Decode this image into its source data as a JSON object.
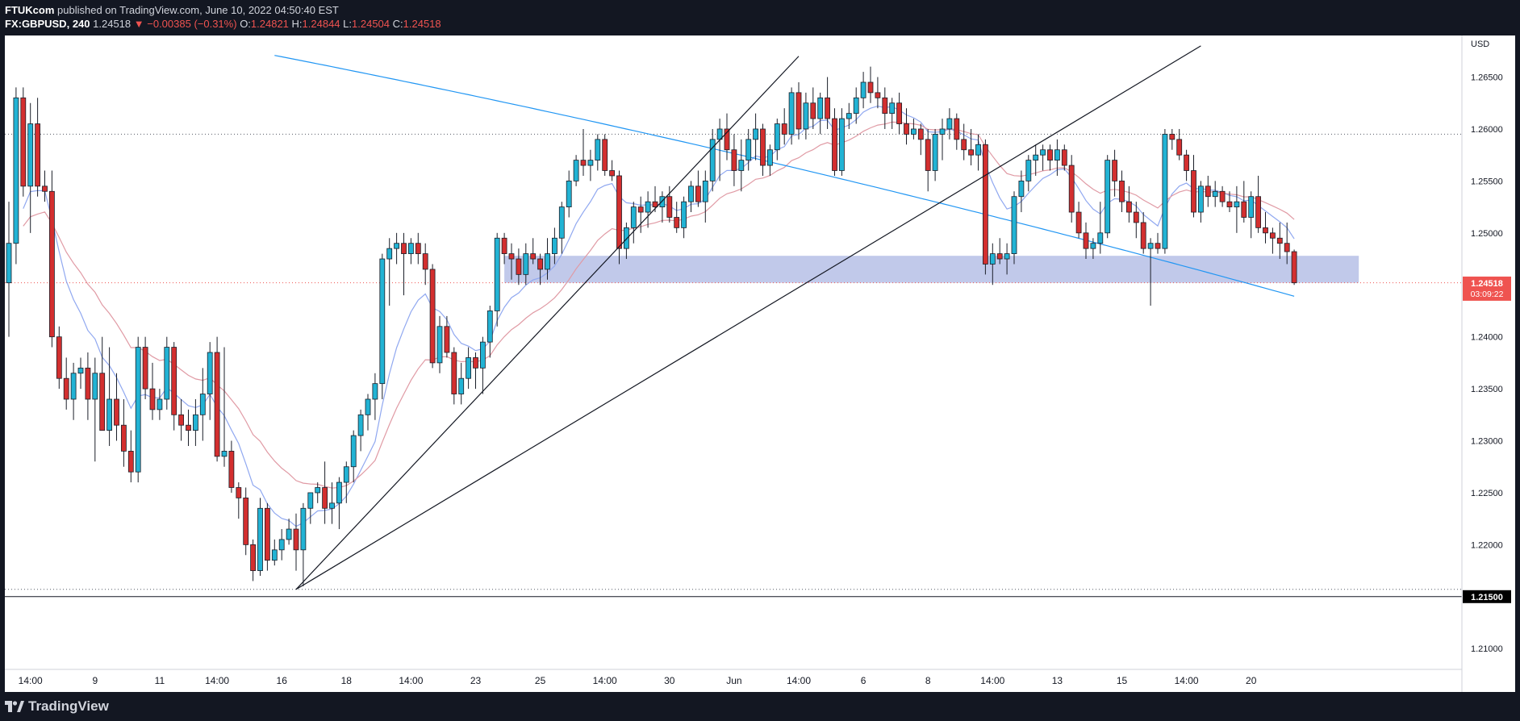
{
  "header": {
    "publisher": "FTUKcom",
    "published_text": "published on TradingView.com, June 10, 2022 04:50:40 EST",
    "symbol": "FX:GBPUSD",
    "interval": "240",
    "last": "1.24518",
    "change": "▼ −0.00385 (−0.31%)",
    "o_label": "O:",
    "o_value": "1.24821",
    "h_label": "H:",
    "h_value": "1.24844",
    "l_label": "L:",
    "l_value": "1.24504",
    "c_label": "C:",
    "c_value": "1.24518"
  },
  "footer": {
    "brand": "TradingView"
  },
  "colors": {
    "bull": "#26a69a",
    "bull_fill": "#22b3d4",
    "bear": "#d32f2f",
    "ema_fast": "#90a8f0",
    "ema_slow": "#e09aa4",
    "ma_long": "#2196f3",
    "zone": "#b6bfe6",
    "price_tag": "#ef5350",
    "level_tag": "#000000"
  },
  "chart_data": {
    "type": "candlestick",
    "title": "",
    "currency_label": "USD",
    "ylim": [
      1.208,
      1.269
    ],
    "y_ticks": [
      "1.26500",
      "1.26000",
      "1.25500",
      "1.25000",
      "1.24500",
      "1.24000",
      "1.23500",
      "1.23000",
      "1.22500",
      "1.22000",
      "1.21500",
      "1.21000"
    ],
    "y_tick_values": [
      1.265,
      1.26,
      1.255,
      1.25,
      1.245,
      1.24,
      1.235,
      1.23,
      1.225,
      1.22,
      1.215,
      1.21
    ],
    "x_ticks": [
      "14:00",
      "9",
      "11",
      "14:00",
      "16",
      "18",
      "14:00",
      "23",
      "25",
      "14:00",
      "30",
      "Jun",
      "14:00",
      "6",
      "8",
      "14:00",
      "13",
      "15",
      "14:00",
      "20"
    ],
    "x_tick_index": [
      3,
      12,
      21,
      29,
      38,
      47,
      56,
      65,
      74,
      83,
      92,
      101,
      110,
      119,
      128,
      137,
      146,
      155,
      164,
      173
    ],
    "last_price": {
      "value": "1.24518",
      "countdown": "03:09:22"
    },
    "horizontal_levels": [
      {
        "value": 1.215,
        "label": "1.21500",
        "style": "solid"
      },
      {
        "value": 1.2157,
        "style": "dotted"
      },
      {
        "value": 1.2595,
        "style": "dotted"
      },
      {
        "value": 1.2452,
        "style": "dotted-red"
      }
    ],
    "zone": {
      "from_index": 69,
      "to_index": 188,
      "low": 1.2452,
      "high": 1.2478
    },
    "trendlines": [
      {
        "from": [
          40,
          1.2157
        ],
        "to": [
          110,
          1.267
        ]
      },
      {
        "from": [
          40,
          1.2157
        ],
        "to": [
          166,
          1.268
        ]
      }
    ],
    "candles": [
      [
        1.2452,
        1.253,
        1.24,
        1.249
      ],
      [
        1.249,
        1.264,
        1.247,
        1.263
      ],
      [
        1.263,
        1.264,
        1.2535,
        1.2545
      ],
      [
        1.2545,
        1.2625,
        1.25,
        1.2605
      ],
      [
        1.2605,
        1.263,
        1.2535,
        1.2545
      ],
      [
        1.2545,
        1.256,
        1.253,
        1.254
      ],
      [
        1.254,
        1.256,
        1.239,
        1.24
      ],
      [
        1.24,
        1.241,
        1.235,
        1.236
      ],
      [
        1.236,
        1.238,
        1.233,
        1.234
      ],
      [
        1.234,
        1.2375,
        1.232,
        1.2365
      ],
      [
        1.2365,
        1.238,
        1.235,
        1.237
      ],
      [
        1.237,
        1.2385,
        1.232,
        1.234
      ],
      [
        1.234,
        1.238,
        1.228,
        1.2365
      ],
      [
        1.2365,
        1.24,
        1.231,
        1.231
      ],
      [
        1.231,
        1.239,
        1.2295,
        1.234
      ],
      [
        1.234,
        1.2365,
        1.23,
        1.2315
      ],
      [
        1.2315,
        1.234,
        1.2275,
        1.229
      ],
      [
        1.229,
        1.231,
        1.226,
        1.227
      ],
      [
        1.227,
        1.24,
        1.226,
        1.239
      ],
      [
        1.239,
        1.24,
        1.234,
        1.235
      ],
      [
        1.235,
        1.2375,
        1.232,
        1.233
      ],
      [
        1.233,
        1.235,
        1.232,
        1.234
      ],
      [
        1.234,
        1.24,
        1.233,
        1.239
      ],
      [
        1.239,
        1.2395,
        1.231,
        1.2325
      ],
      [
        1.2325,
        1.234,
        1.23,
        1.2315
      ],
      [
        1.2315,
        1.233,
        1.2295,
        1.231
      ],
      [
        1.231,
        1.234,
        1.2295,
        1.2325
      ],
      [
        1.2325,
        1.237,
        1.23,
        1.2345
      ],
      [
        1.2345,
        1.2395,
        1.232,
        1.2385
      ],
      [
        1.2385,
        1.24,
        1.228,
        1.2285
      ],
      [
        1.2285,
        1.239,
        1.2275,
        1.229
      ],
      [
        1.229,
        1.23,
        1.225,
        1.2255
      ],
      [
        1.2255,
        1.226,
        1.2225,
        1.2245
      ],
      [
        1.2245,
        1.2255,
        1.219,
        1.22
      ],
      [
        1.22,
        1.2205,
        1.2165,
        1.2175
      ],
      [
        1.2175,
        1.2245,
        1.217,
        1.2235
      ],
      [
        1.2235,
        1.224,
        1.2175,
        1.2185
      ],
      [
        1.2185,
        1.2205,
        1.218,
        1.2195
      ],
      [
        1.2195,
        1.2215,
        1.2185,
        1.2205
      ],
      [
        1.2205,
        1.2225,
        1.22,
        1.2215
      ],
      [
        1.2215,
        1.223,
        1.2175,
        1.2195
      ],
      [
        1.2195,
        1.224,
        1.216,
        1.2235
      ],
      [
        1.2235,
        1.225,
        1.222,
        1.225
      ],
      [
        1.225,
        1.226,
        1.224,
        1.2255
      ],
      [
        1.2255,
        1.228,
        1.222,
        1.2235
      ],
      [
        1.2235,
        1.226,
        1.222,
        1.224
      ],
      [
        1.224,
        1.2265,
        1.2215,
        1.226
      ],
      [
        1.226,
        1.228,
        1.224,
        1.2275
      ],
      [
        1.2275,
        1.231,
        1.226,
        1.2305
      ],
      [
        1.2305,
        1.233,
        1.229,
        1.2325
      ],
      [
        1.2325,
        1.2345,
        1.231,
        1.234
      ],
      [
        1.234,
        1.2365,
        1.232,
        1.2355
      ],
      [
        1.2355,
        1.248,
        1.234,
        1.2475
      ],
      [
        1.2475,
        1.2495,
        1.243,
        1.2485
      ],
      [
        1.2485,
        1.25,
        1.247,
        1.249
      ],
      [
        1.249,
        1.25,
        1.244,
        1.248
      ],
      [
        1.248,
        1.2495,
        1.247,
        1.249
      ],
      [
        1.249,
        1.25,
        1.247,
        1.248
      ],
      [
        1.248,
        1.249,
        1.245,
        1.2465
      ],
      [
        1.2465,
        1.247,
        1.237,
        1.2375
      ],
      [
        1.2375,
        1.242,
        1.2365,
        1.241
      ],
      [
        1.241,
        1.242,
        1.238,
        1.2385
      ],
      [
        1.2385,
        1.239,
        1.2335,
        1.2345
      ],
      [
        1.2345,
        1.2375,
        1.2335,
        1.236
      ],
      [
        1.236,
        1.239,
        1.235,
        1.238
      ],
      [
        1.238,
        1.2385,
        1.235,
        1.237
      ],
      [
        1.237,
        1.24,
        1.2345,
        1.2395
      ],
      [
        1.2395,
        1.243,
        1.238,
        1.2425
      ],
      [
        1.2425,
        1.25,
        1.241,
        1.2495
      ],
      [
        1.2495,
        1.25,
        1.247,
        1.248
      ],
      [
        1.248,
        1.249,
        1.2455,
        1.2475
      ],
      [
        1.2475,
        1.2485,
        1.245,
        1.246
      ],
      [
        1.246,
        1.249,
        1.245,
        1.248
      ],
      [
        1.248,
        1.2495,
        1.247,
        1.2475
      ],
      [
        1.2475,
        1.248,
        1.245,
        1.2465
      ],
      [
        1.2465,
        1.2495,
        1.2455,
        1.248
      ],
      [
        1.248,
        1.2505,
        1.247,
        1.2495
      ],
      [
        1.2495,
        1.253,
        1.248,
        1.2525
      ],
      [
        1.2525,
        1.256,
        1.2515,
        1.255
      ],
      [
        1.255,
        1.2575,
        1.2545,
        1.257
      ],
      [
        1.257,
        1.26,
        1.2555,
        1.2565
      ],
      [
        1.2565,
        1.258,
        1.255,
        1.257
      ],
      [
        1.257,
        1.2595,
        1.256,
        1.259
      ],
      [
        1.259,
        1.2595,
        1.2555,
        1.256
      ],
      [
        1.256,
        1.257,
        1.255,
        1.2555
      ],
      [
        1.2555,
        1.256,
        1.247,
        1.2485
      ],
      [
        1.2485,
        1.251,
        1.2475,
        1.2505
      ],
      [
        1.2505,
        1.253,
        1.249,
        1.2525
      ],
      [
        1.2525,
        1.2535,
        1.25,
        1.252
      ],
      [
        1.252,
        1.254,
        1.2505,
        1.253
      ],
      [
        1.253,
        1.2545,
        1.252,
        1.2525
      ],
      [
        1.2525,
        1.254,
        1.251,
        1.2535
      ],
      [
        1.2535,
        1.2545,
        1.251,
        1.2515
      ],
      [
        1.2515,
        1.253,
        1.25,
        1.2505
      ],
      [
        1.2505,
        1.2535,
        1.2495,
        1.253
      ],
      [
        1.253,
        1.255,
        1.252,
        1.2545
      ],
      [
        1.2545,
        1.256,
        1.2525,
        1.253
      ],
      [
        1.253,
        1.256,
        1.251,
        1.255
      ],
      [
        1.255,
        1.26,
        1.254,
        1.259
      ],
      [
        1.259,
        1.261,
        1.255,
        1.26
      ],
      [
        1.26,
        1.2615,
        1.257,
        1.258
      ],
      [
        1.258,
        1.2595,
        1.2545,
        1.256
      ],
      [
        1.256,
        1.259,
        1.254,
        1.257
      ],
      [
        1.257,
        1.26,
        1.256,
        1.259
      ],
      [
        1.259,
        1.2615,
        1.257,
        1.26
      ],
      [
        1.26,
        1.2605,
        1.2555,
        1.2565
      ],
      [
        1.2565,
        1.2585,
        1.2555,
        1.258
      ],
      [
        1.258,
        1.261,
        1.257,
        1.2605
      ],
      [
        1.2605,
        1.262,
        1.2585,
        1.2595
      ],
      [
        1.2595,
        1.264,
        1.2585,
        1.2635
      ],
      [
        1.2635,
        1.2645,
        1.259,
        1.26
      ],
      [
        1.26,
        1.2635,
        1.259,
        1.2625
      ],
      [
        1.2625,
        1.264,
        1.26,
        1.261
      ],
      [
        1.261,
        1.2635,
        1.2595,
        1.263
      ],
      [
        1.263,
        1.265,
        1.26,
        1.261
      ],
      [
        1.261,
        1.262,
        1.2555,
        1.256
      ],
      [
        1.256,
        1.262,
        1.2555,
        1.261
      ],
      [
        1.261,
        1.2625,
        1.26,
        1.2615
      ],
      [
        1.2615,
        1.264,
        1.2605,
        1.263
      ],
      [
        1.263,
        1.2655,
        1.262,
        1.2645
      ],
      [
        1.2645,
        1.266,
        1.2625,
        1.2635
      ],
      [
        1.2635,
        1.265,
        1.262,
        1.263
      ],
      [
        1.263,
        1.264,
        1.26,
        1.2615
      ],
      [
        1.2615,
        1.263,
        1.26,
        1.2625
      ],
      [
        1.2625,
        1.2635,
        1.2595,
        1.2605
      ],
      [
        1.2605,
        1.262,
        1.2585,
        1.2595
      ],
      [
        1.2595,
        1.261,
        1.259,
        1.26
      ],
      [
        1.26,
        1.2605,
        1.2575,
        1.259
      ],
      [
        1.259,
        1.26,
        1.254,
        1.256
      ],
      [
        1.256,
        1.26,
        1.255,
        1.2595
      ],
      [
        1.2595,
        1.261,
        1.257,
        1.26
      ],
      [
        1.26,
        1.262,
        1.259,
        1.261
      ],
      [
        1.261,
        1.2615,
        1.258,
        1.259
      ],
      [
        1.259,
        1.2605,
        1.257,
        1.258
      ],
      [
        1.258,
        1.26,
        1.2565,
        1.2575
      ],
      [
        1.2575,
        1.2595,
        1.256,
        1.2585
      ],
      [
        1.2585,
        1.259,
        1.246,
        1.247
      ],
      [
        1.247,
        1.249,
        1.245,
        1.248
      ],
      [
        1.248,
        1.2495,
        1.247,
        1.2475
      ],
      [
        1.2475,
        1.249,
        1.246,
        1.248
      ],
      [
        1.248,
        1.254,
        1.247,
        1.2535
      ],
      [
        1.2535,
        1.256,
        1.252,
        1.255
      ],
      [
        1.255,
        1.2575,
        1.254,
        1.257
      ],
      [
        1.257,
        1.2585,
        1.2555,
        1.2575
      ],
      [
        1.2575,
        1.2585,
        1.256,
        1.258
      ],
      [
        1.258,
        1.2585,
        1.256,
        1.257
      ],
      [
        1.257,
        1.259,
        1.2555,
        1.258
      ],
      [
        1.258,
        1.2585,
        1.256,
        1.2565
      ],
      [
        1.2565,
        1.2575,
        1.251,
        1.252
      ],
      [
        1.252,
        1.253,
        1.2495,
        1.25
      ],
      [
        1.25,
        1.251,
        1.2475,
        1.2485
      ],
      [
        1.2485,
        1.2495,
        1.2475,
        1.249
      ],
      [
        1.249,
        1.253,
        1.248,
        1.25
      ],
      [
        1.25,
        1.2575,
        1.2495,
        1.257
      ],
      [
        1.257,
        1.258,
        1.2535,
        1.255
      ],
      [
        1.255,
        1.256,
        1.252,
        1.253
      ],
      [
        1.253,
        1.2545,
        1.251,
        1.252
      ],
      [
        1.252,
        1.253,
        1.2495,
        1.251
      ],
      [
        1.251,
        1.252,
        1.248,
        1.2485
      ],
      [
        1.2485,
        1.2495,
        1.243,
        1.249
      ],
      [
        1.249,
        1.25,
        1.248,
        1.2485
      ],
      [
        1.2485,
        1.26,
        1.248,
        1.2595
      ],
      [
        1.2595,
        1.26,
        1.258,
        1.259
      ],
      [
        1.259,
        1.26,
        1.257,
        1.2575
      ],
      [
        1.2575,
        1.258,
        1.255,
        1.256
      ],
      [
        1.256,
        1.2575,
        1.2515,
        1.252
      ],
      [
        1.252,
        1.255,
        1.251,
        1.2545
      ],
      [
        1.2545,
        1.2555,
        1.2525,
        1.2535
      ],
      [
        1.2535,
        1.255,
        1.2525,
        1.254
      ],
      [
        1.254,
        1.2545,
        1.2525,
        1.253
      ],
      [
        1.253,
        1.254,
        1.252,
        1.2525
      ],
      [
        1.2525,
        1.2545,
        1.25,
        1.253
      ],
      [
        1.253,
        1.255,
        1.251,
        1.2515
      ],
      [
        1.2515,
        1.254,
        1.2495,
        1.2535
      ],
      [
        1.2535,
        1.2555,
        1.25,
        1.2505
      ],
      [
        1.2505,
        1.252,
        1.249,
        1.25
      ],
      [
        1.25,
        1.2505,
        1.248,
        1.2495
      ],
      [
        1.2495,
        1.251,
        1.2475,
        1.249
      ],
      [
        1.249,
        1.251,
        1.247,
        1.2482
      ],
      [
        1.2482,
        1.2484,
        1.245,
        1.2452
      ]
    ]
  }
}
